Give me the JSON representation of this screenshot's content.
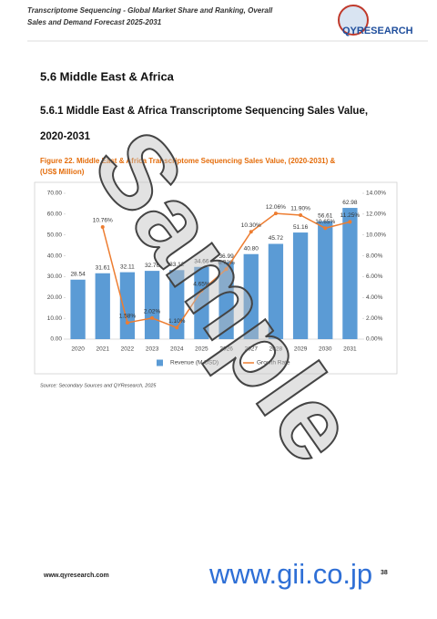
{
  "header": {
    "title_lines": [
      "Transcriptome Sequencing - Global Market Share and Ranking, Overall",
      "Sales and Demand Forecast 2025-2031"
    ],
    "logo": "QYRESEARCH"
  },
  "section": {
    "heading": "5.6  Middle East & Africa",
    "subheading_lines": [
      "5.6.1  Middle East & Africa Transcriptome Sequencing Sales Value,",
      "2020-2031"
    ]
  },
  "figure": {
    "caption_lines": [
      "Figure 22.  Middle East & Africa Transcriptome Sequencing Sales Value, (2020-2031) &",
      "(US$ Million)"
    ],
    "source": "Source: Secondary Sources and QYResearch, 2025"
  },
  "chart_data": {
    "type": "bar",
    "categories": [
      "2020",
      "2021",
      "2022",
      "2023",
      "2024",
      "2025",
      "2026",
      "2027",
      "2028",
      "2029",
      "2030",
      "2031"
    ],
    "series": [
      {
        "name": "Revenue (M USD)",
        "color": "#5b9bd5",
        "values": [
          28.54,
          31.61,
          32.11,
          32.76,
          33.12,
          34.66,
          36.99,
          40.8,
          45.72,
          51.16,
          56.61,
          62.98
        ],
        "value_labels": [
          "28.54",
          "31.61",
          "32.11",
          "32.76",
          "33.12",
          "34.66",
          "36.99",
          "40.80",
          "45.72",
          "51.16",
          "56.61",
          "62.98"
        ]
      },
      {
        "name": "Growth Rate",
        "color": "#ed7d31",
        "axis": "y2",
        "type": "line",
        "values": [
          null,
          10.76,
          1.58,
          2.02,
          1.1,
          4.65,
          6.72,
          10.3,
          12.06,
          11.9,
          10.65,
          11.25
        ],
        "value_labels": [
          null,
          "10.76%",
          "1.58%",
          "2.02%",
          "1.10%",
          "4.65%",
          "6.72%",
          "10.30%",
          "12.06%",
          "11.90%",
          "10.65%",
          "11.25%"
        ]
      }
    ],
    "ylim": [
      0,
      70
    ],
    "yticks": [
      {
        "value": 0,
        "label": "0.00"
      },
      {
        "value": 10,
        "label": "10.00"
      },
      {
        "value": 20,
        "label": "20.00"
      },
      {
        "value": 30,
        "label": "30.00"
      },
      {
        "value": 40,
        "label": "40.00"
      },
      {
        "value": 50,
        "label": "50.00"
      },
      {
        "value": 60,
        "label": "60.00"
      },
      {
        "value": 70,
        "label": "70.00"
      }
    ],
    "y2lim": [
      0,
      14
    ],
    "y2ticks": [
      {
        "value": 0,
        "label": "0.00%"
      },
      {
        "value": 2,
        "label": "2.00%"
      },
      {
        "value": 4,
        "label": "4.00%"
      },
      {
        "value": 6,
        "label": "6.00%"
      },
      {
        "value": 8,
        "label": "8.00%"
      },
      {
        "value": 10,
        "label": "10.00%"
      },
      {
        "value": 12,
        "label": "12.00%"
      },
      {
        "value": 14,
        "label": "14.00%"
      }
    ],
    "legend": "bottom"
  },
  "footer": {
    "website": "www.qyresearch.com",
    "page": "38"
  },
  "watermarks": [
    "Sample",
    "www.gii.co.jp"
  ]
}
